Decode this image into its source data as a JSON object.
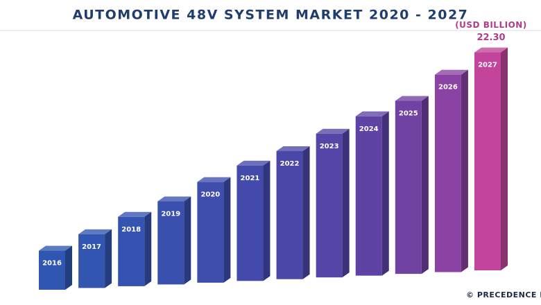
{
  "chart_data": {
    "type": "bar3d",
    "title": "AUTOMOTIVE 48V SYSTEM MARKET 2020 - 2027",
    "unit_label": "(USD BILLION)",
    "categories": [
      "2016",
      "2017",
      "2018",
      "2019",
      "2020",
      "2021",
      "2022",
      "2023",
      "2024",
      "2025",
      "2026",
      "2027"
    ],
    "values": [
      4.0,
      5.5,
      7.1,
      8.5,
      10.3,
      11.8,
      13.1,
      14.7,
      16.3,
      17.7,
      20.2,
      22.3
    ],
    "value_labels": [
      null,
      null,
      null,
      null,
      null,
      null,
      null,
      null,
      null,
      null,
      null,
      "22.30"
    ],
    "colors": [
      "#2f56b0",
      "#3155b0",
      "#3553b0",
      "#3a50ae",
      "#3f4dad",
      "#444aab",
      "#4b47a8",
      "#5545a6",
      "#5f43a4",
      "#7042a2",
      "#8a43a3",
      "#c2459b"
    ],
    "source": "© PRECEDENCE RES"
  }
}
